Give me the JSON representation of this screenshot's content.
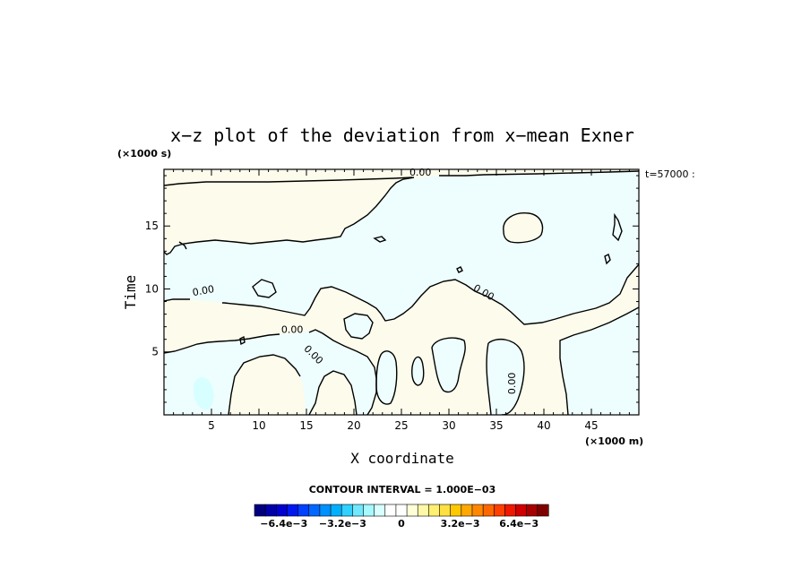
{
  "chart_data": {
    "type": "heatmap",
    "title": "x−z plot of the deviation from x−mean Exner",
    "xlabel": "X coordinate",
    "ylabel": "Time",
    "x_unit": "(×1000 m)",
    "y_unit": "(×1000 s)",
    "time_stamp": "t=57000 :",
    "xlim": [
      0,
      50
    ],
    "ylim": [
      0,
      19.5
    ],
    "x_ticks": [
      5,
      10,
      15,
      20,
      25,
      30,
      35,
      40,
      45
    ],
    "y_ticks": [
      5,
      10,
      15
    ],
    "x_tick_labels": [
      "5",
      "10",
      "15",
      "20",
      "25",
      "30",
      "35",
      "40",
      "45"
    ],
    "y_tick_labels": [
      "5",
      "10",
      "15"
    ],
    "contour_interval_label": "CONTOUR INTERVAL = 1.000E−03",
    "contour_labels": [
      {
        "text": "0.00",
        "x": 27.0,
        "y": 19.0
      },
      {
        "text": "0.00",
        "x": 4.2,
        "y": 9.6
      },
      {
        "text": "0.00",
        "x": 13.5,
        "y": 6.5
      },
      {
        "text": "0.00",
        "x": 15.5,
        "y": 4.6
      },
      {
        "text": "0.00",
        "x": 33.5,
        "y": 9.5
      },
      {
        "text": "0.00",
        "x": 37.0,
        "y": 2.5
      }
    ],
    "colorbar": {
      "min": -0.008,
      "max": 0.008,
      "tick_labels": [
        "−6.4e−3",
        "−3.2e−3",
        "0",
        "3.2e−3",
        "6.4e−3"
      ],
      "tick_values": [
        -0.0064,
        -0.0032,
        0,
        0.0032,
        0.0064
      ],
      "colors": [
        "#00007f",
        "#0000a8",
        "#0000d0",
        "#0018f0",
        "#0040ff",
        "#0068ff",
        "#0090ff",
        "#00b0ff",
        "#30d0ff",
        "#70e8ff",
        "#a8f8ff",
        "#d8ffff",
        "#ffffff",
        "#ffffff",
        "#ffffd8",
        "#fff8a8",
        "#fff070",
        "#ffe040",
        "#ffc800",
        "#ffa800",
        "#ff8800",
        "#ff6800",
        "#ff4000",
        "#f01800",
        "#d00000",
        "#a80000",
        "#7f0000"
      ]
    },
    "regions": [
      {
        "name": "positive",
        "color": "#fdfcec"
      },
      {
        "name": "negative",
        "color": "#eefdfd"
      },
      {
        "name": "negative-strong",
        "color": "#d8ffff"
      }
    ]
  }
}
